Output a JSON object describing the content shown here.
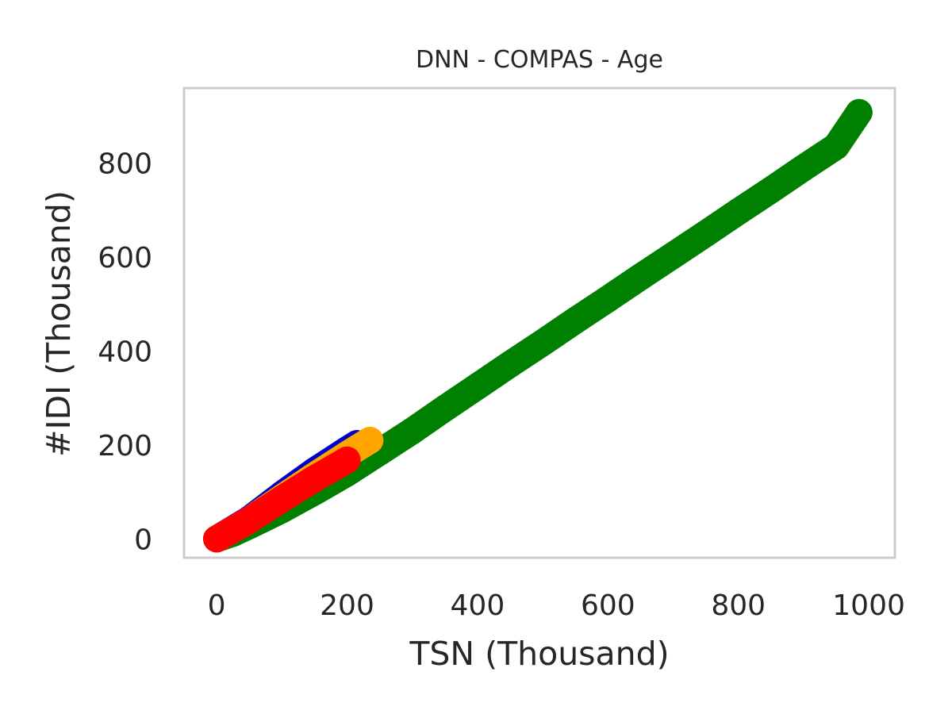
{
  "chart_data": {
    "type": "scatter",
    "title": "DNN - COMPAS - Age",
    "xlabel": "TSN (Thousand)",
    "ylabel": "#IDI (Thousand)",
    "xlim": [
      -50,
      1040
    ],
    "ylim": [
      -40,
      960
    ],
    "x_ticks": [
      0,
      200,
      400,
      600,
      800,
      1000
    ],
    "y_ticks": [
      0,
      200,
      400,
      600,
      800
    ],
    "x_tick_labels": [
      "0",
      "200",
      "400",
      "600",
      "800",
      "1000"
    ],
    "y_tick_labels": [
      "0",
      "200",
      "400",
      "600",
      "800"
    ],
    "grid": false,
    "frame_color": "#cccccc",
    "series": [
      {
        "color": "#008000",
        "x": [
          0,
          25,
          50,
          75,
          100,
          150,
          200,
          250,
          300,
          350,
          400,
          450,
          500,
          550,
          600,
          650,
          700,
          750,
          800,
          850,
          900,
          950,
          985
        ],
        "y": [
          0,
          12,
          28,
          45,
          62,
          100,
          140,
          185,
          230,
          278,
          325,
          372,
          418,
          465,
          511,
          558,
          604,
          650,
          697,
          743,
          790,
          836,
          908
        ]
      },
      {
        "color": "#0000cc",
        "x": [
          0,
          50,
          100,
          150,
          200,
          215
        ],
        "y": [
          0,
          42,
          95,
          145,
          190,
          203
        ]
      },
      {
        "color": "#ffa500",
        "x": [
          0,
          50,
          100,
          150,
          200,
          235
        ],
        "y": [
          0,
          40,
          88,
          135,
          180,
          210
        ]
      },
      {
        "color": "#ff0000",
        "x": [
          0,
          50,
          100,
          150,
          200
        ],
        "y": [
          0,
          40,
          85,
          128,
          168
        ]
      }
    ]
  }
}
